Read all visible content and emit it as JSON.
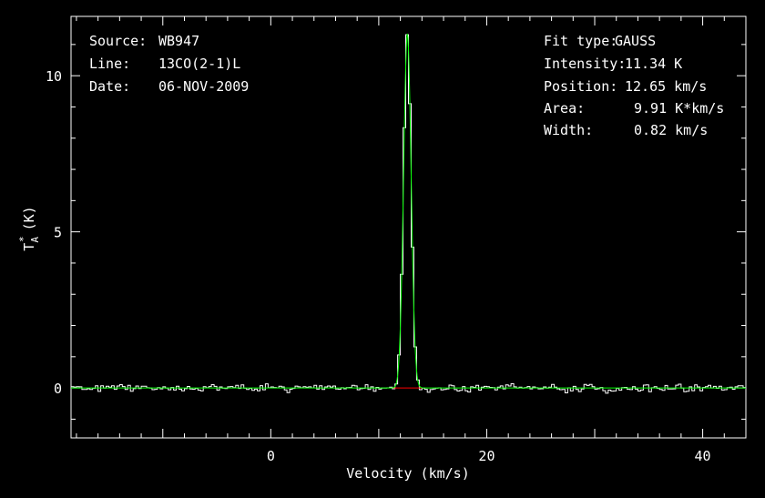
{
  "chart_data": {
    "type": "line",
    "xlabel": "Velocity (km/s)",
    "ylabel_main": "T",
    "ylabel_sub": "A",
    "ylabel_sup": "*",
    "ylabel_unit": "(K)",
    "xlim": [
      -18.5,
      44
    ],
    "ylim": [
      -1.6,
      11.9
    ],
    "x_ticks": [
      0,
      20,
      40
    ],
    "y_ticks": [
      0,
      5,
      10
    ],
    "grid": false,
    "info_left": [
      {
        "key": "Source:",
        "value": "WB947"
      },
      {
        "key": "Line:",
        "value": "13CO(2-1)L"
      },
      {
        "key": "Date:",
        "value": "06-NOV-2009"
      }
    ],
    "info_right": [
      {
        "key": "Fit type:",
        "value": "GAUSS"
      },
      {
        "key": "Intensity:",
        "value": "11.34 K"
      },
      {
        "key": "Position:",
        "value": "12.65 km/s"
      },
      {
        "key": "Area:",
        "value": "9.91 K*km/s"
      },
      {
        "key": "Width:",
        "value": "0.82 km/s"
      }
    ],
    "fit": {
      "amplitude": 11.34,
      "center": 12.65,
      "fwhm": 0.82,
      "baseline": 0
    },
    "series": [
      {
        "role": "spectrum",
        "color": "#ffffff",
        "x_start": -18.5,
        "x_step": 0.25,
        "noise_rms": 0.06
      },
      {
        "role": "gaussian-fit",
        "color": "#00ff00"
      },
      {
        "role": "baseline-window",
        "color": "#ff0000",
        "x_range": [
          11.3,
          14.1
        ],
        "y": 0
      }
    ]
  }
}
